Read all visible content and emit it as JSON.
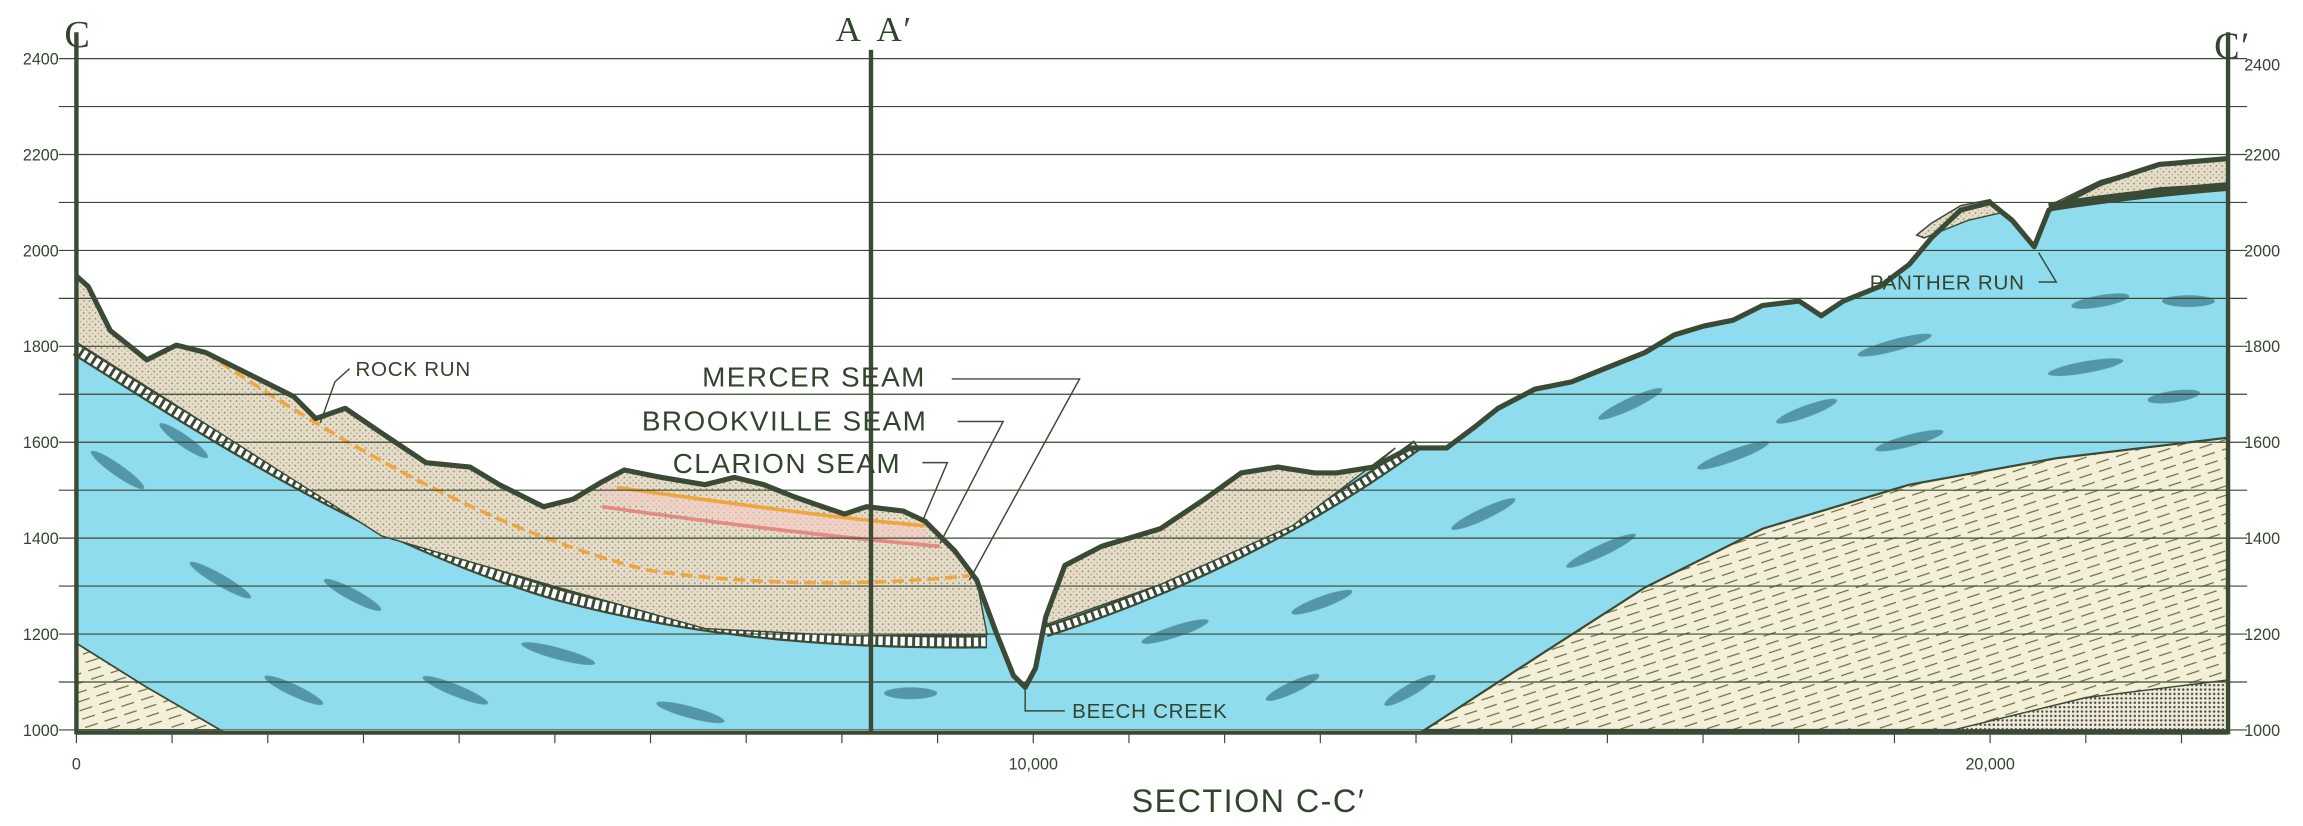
{
  "section": {
    "title": "SECTION  C-C′",
    "left_end": "C",
    "right_end": "C′",
    "cross_section": [
      "A",
      "A′"
    ]
  },
  "elevation_axis_left": [
    "1000",
    "1200",
    "1400",
    "1600",
    "1800",
    "2000",
    "2200",
    "2400"
  ],
  "elevation_axis_right": [
    "1000",
    "1200",
    "1400",
    "1600",
    "1800",
    "2000",
    "2200",
    "2400"
  ],
  "distance_axis": [
    "0",
    "10,000",
    "20,000"
  ],
  "features": {
    "rock_run": "ROCK RUN",
    "mercer_seam": "MERCER SEAM",
    "brookville_seam": "BROOKVILLE SEAM",
    "clarion_seam": "CLARION SEAM",
    "beech_creek": "BEECH CREEK",
    "panther_run": "PANTHER RUN"
  }
}
